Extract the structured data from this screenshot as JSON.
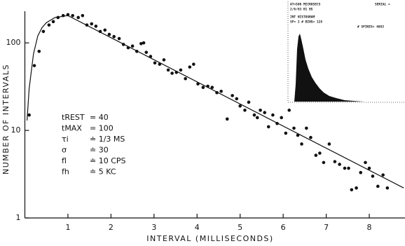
{
  "chart_data": {
    "type": "scatter",
    "x_label": "INTERVAL (MILLISECONDS)",
    "y_label": "NUMBER OF INTERVALS",
    "log_y": true,
    "grid": false,
    "color": "#111111",
    "xlim": [
      0,
      8.83
    ],
    "ylim": [
      1,
      230
    ],
    "xticks": [
      1,
      2,
      3,
      4,
      5,
      6,
      7,
      8
    ],
    "yticks": [
      1,
      10,
      100
    ],
    "x": [
      0.1,
      0.22,
      0.33,
      0.43,
      0.56,
      0.66,
      0.77,
      0.89,
      1.0,
      1.11,
      1.24,
      1.34,
      1.44,
      1.55,
      1.65,
      1.75,
      1.86,
      1.96,
      2.07,
      2.19,
      2.29,
      2.4,
      2.5,
      2.6,
      2.7,
      2.76,
      2.82,
      2.92,
      3.02,
      3.13,
      3.23,
      3.33,
      3.42,
      3.52,
      3.62,
      3.73,
      3.83,
      3.92,
      4.02,
      4.14,
      4.25,
      4.35,
      4.46,
      4.56,
      4.7,
      4.82,
      4.92,
      5.0,
      5.11,
      5.2,
      5.33,
      5.4,
      5.47,
      5.57,
      5.66,
      5.76,
      5.86,
      5.96,
      6.06,
      6.14,
      6.25,
      6.34,
      6.43,
      6.54,
      6.64,
      6.76,
      6.85,
      6.94,
      7.07,
      7.2,
      7.31,
      7.43,
      7.52,
      7.59,
      7.7,
      7.8,
      7.91,
      8.0,
      8.08,
      8.2,
      8.32,
      8.42
    ],
    "values": [
      15,
      55,
      80,
      135,
      160,
      175,
      195,
      205,
      210,
      205,
      195,
      205,
      160,
      165,
      155,
      135,
      140,
      125,
      118,
      112,
      96,
      88,
      92,
      80,
      98,
      100,
      78,
      70,
      59,
      57,
      64,
      49,
      45,
      46,
      49,
      39,
      53,
      57,
      34,
      31,
      32,
      31,
      27,
      28,
      13.5,
      25,
      23,
      19,
      17,
      21,
      15,
      14,
      17,
      16,
      11,
      15,
      12,
      14,
      9.3,
      17,
      10.6,
      8.8,
      7,
      10.6,
      8.3,
      5.2,
      5.5,
      4.3,
      7,
      4.4,
      4.1,
      3.7,
      3.7,
      2.1,
      2.2,
      3.3,
      4.3,
      3.7,
      3,
      2.3,
      3.1,
      2.2
    ],
    "fit": {
      "x": [
        0.05,
        0.1,
        0.2,
        0.3,
        0.4,
        0.5,
        0.7,
        1.0,
        8.8
      ],
      "values": [
        13,
        30,
        75,
        120,
        150,
        170,
        195,
        205,
        2.2
      ]
    },
    "annotations": [
      {
        "label": "tREST",
        "value": "= 40"
      },
      {
        "label": "tMAX",
        "value": "= 100"
      },
      {
        "label": "τi",
        "value": "≐ 1/3 MS"
      },
      {
        "label": "σ",
        "value": "≐ 30"
      },
      {
        "label": "fl",
        "value": "≐ 10 CPS"
      },
      {
        "label": "fh",
        "value": "≐ 5 KC"
      }
    ],
    "inset_text": [
      "AT=500 MICROSECS",
      "2/6/63  B1 B5",
      "INT HISTOGRAM",
      "SF=   2   # BINS=   128",
      "# SPIKES= 4083",
      "SERIAL ="
    ]
  }
}
